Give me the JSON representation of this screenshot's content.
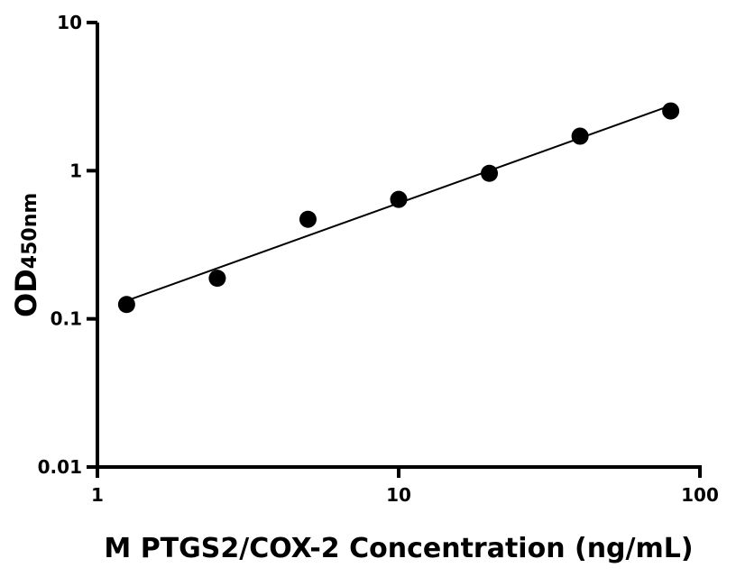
{
  "chart_data": {
    "type": "scatter",
    "xlabel": "M PTGS2/COX-2 Concentration (ng/mL)",
    "ylabel_main": "OD",
    "ylabel_sub": "450nm",
    "x_scale": "log",
    "y_scale": "log",
    "xlim": [
      1,
      100
    ],
    "ylim": [
      0.01,
      10
    ],
    "x_ticks": [
      "1",
      "10",
      "100"
    ],
    "y_ticks": [
      "0.01",
      "0.1",
      "1",
      "10"
    ],
    "grid": false,
    "fit_line": "linear fit in log-log space",
    "points": [
      {
        "x": 1.25,
        "y": 0.125
      },
      {
        "x": 2.5,
        "y": 0.188
      },
      {
        "x": 5,
        "y": 0.47
      },
      {
        "x": 10,
        "y": 0.64
      },
      {
        "x": 20,
        "y": 0.96
      },
      {
        "x": 40,
        "y": 1.71
      },
      {
        "x": 80,
        "y": 2.53
      }
    ],
    "colors": {
      "points": "#000000",
      "axes": "#000000",
      "line": "#000000"
    }
  }
}
